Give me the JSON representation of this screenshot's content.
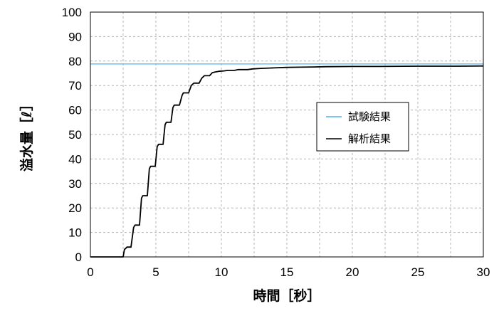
{
  "chart_data": {
    "type": "line",
    "xlabel": "時間［秒］",
    "ylabel": "溢水量［ℓ］",
    "xlim": [
      0,
      30
    ],
    "ylim": [
      0,
      100
    ],
    "x_ticks": [
      "0",
      "5",
      "10",
      "15",
      "20",
      "25",
      "30"
    ],
    "y_ticks": [
      "0",
      "10",
      "20",
      "30",
      "40",
      "50",
      "60",
      "70",
      "80",
      "90",
      "100"
    ],
    "grid": true,
    "legend_position": "right-center",
    "series": [
      {
        "name": "試験結果",
        "color": "#4FB3E8",
        "x": [
          0,
          30
        ],
        "y": [
          78.8,
          78.8
        ]
      },
      {
        "name": "解析結果",
        "color": "#000000",
        "x": [
          0,
          2.5,
          2.6,
          2.8,
          3.1,
          3.3,
          3.4,
          3.5,
          3.75,
          3.9,
          4.0,
          4.1,
          4.35,
          4.5,
          4.6,
          4.7,
          4.95,
          5.1,
          5.2,
          5.3,
          5.55,
          5.7,
          5.8,
          5.9,
          6.15,
          6.3,
          6.4,
          6.5,
          6.8,
          7.0,
          7.1,
          7.2,
          7.5,
          7.7,
          7.8,
          7.9,
          8.3,
          8.5,
          8.6,
          8.7,
          9.1,
          9.3,
          9.5,
          9.8,
          10.2,
          10.5,
          11.0,
          11.3,
          12.0,
          12.4,
          13.0,
          14.0,
          15.0,
          16.0,
          17.0,
          18.0,
          20.0,
          22.0,
          25.0,
          28.0,
          30.0
        ],
        "y": [
          0,
          0,
          3,
          4,
          4,
          12,
          13,
          13,
          13,
          24,
          25,
          25,
          25,
          36,
          37,
          37,
          37,
          45,
          46,
          46,
          46,
          54,
          55,
          55,
          55,
          61,
          62,
          62,
          62,
          66,
          67,
          67,
          67,
          70,
          70.5,
          71,
          71,
          73,
          73.5,
          74,
          74,
          75.2,
          75.5,
          75.8,
          76,
          76.2,
          76.2,
          76.5,
          76.5,
          76.8,
          77,
          77.2,
          77.4,
          77.5,
          77.6,
          77.7,
          77.8,
          77.8,
          77.9,
          77.9,
          78
        ]
      }
    ]
  }
}
